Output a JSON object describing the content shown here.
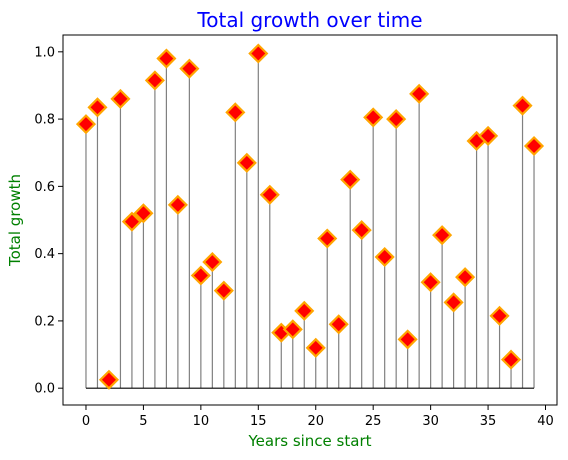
{
  "chart_data": {
    "type": "stem",
    "title": "Total growth over time",
    "xlabel": "Years since start",
    "ylabel": "Total growth",
    "xlim": [
      -2,
      41
    ],
    "ylim": [
      -0.05,
      1.05
    ],
    "xticks": [
      0,
      5,
      10,
      15,
      20,
      25,
      30,
      35,
      40
    ],
    "yticks": [
      0.0,
      0.2,
      0.4,
      0.6,
      0.8,
      1.0
    ],
    "xtick_labels": [
      "0",
      "5",
      "10",
      "15",
      "20",
      "25",
      "30",
      "35",
      "40"
    ],
    "ytick_labels": [
      "0.0",
      "0.2",
      "0.4",
      "0.6",
      "0.8",
      "1.0"
    ],
    "grid": false,
    "baseline": 0,
    "x": [
      0,
      1,
      2,
      3,
      4,
      5,
      6,
      7,
      8,
      9,
      10,
      11,
      12,
      13,
      14,
      15,
      16,
      17,
      18,
      19,
      20,
      21,
      22,
      23,
      24,
      25,
      26,
      27,
      28,
      29,
      30,
      31,
      32,
      33,
      34,
      35,
      36,
      37,
      38,
      39
    ],
    "y": [
      0.785,
      0.835,
      0.025,
      0.86,
      0.495,
      0.52,
      0.915,
      0.98,
      0.545,
      0.95,
      0.335,
      0.375,
      0.29,
      0.82,
      0.67,
      0.995,
      0.575,
      0.165,
      0.175,
      0.23,
      0.12,
      0.445,
      0.19,
      0.62,
      0.47,
      0.805,
      0.39,
      0.8,
      0.145,
      0.875,
      0.315,
      0.455,
      0.255,
      0.33,
      0.735,
      0.75,
      0.215,
      0.085,
      0.84,
      0.72
    ],
    "colors": {
      "title": "#0000ff",
      "axis_labels": "#008000",
      "stem_line": "#808080",
      "baseline": "#000000",
      "marker_fill": "#ff0000",
      "marker_edge": "#ffa500",
      "axes_frame": "#000000"
    },
    "marker": "diamond"
  }
}
